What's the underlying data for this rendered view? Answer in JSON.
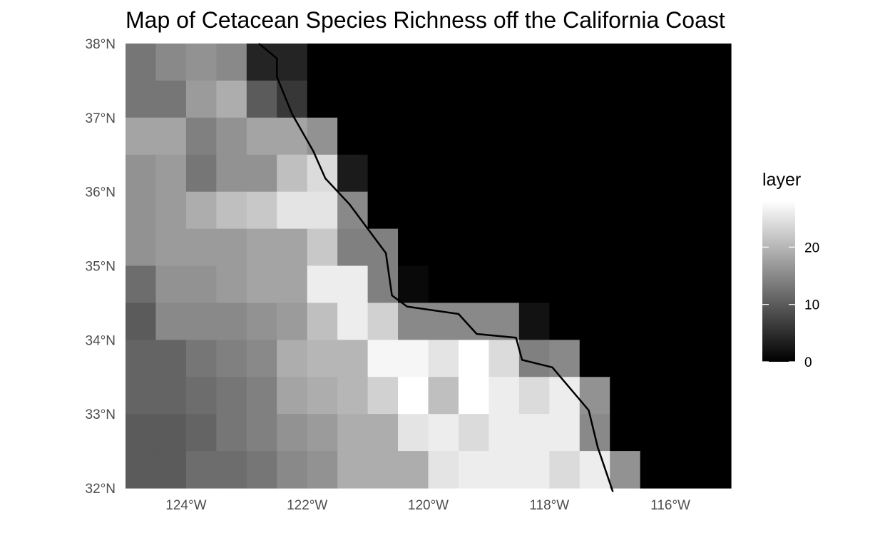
{
  "chart_data": {
    "type": "heatmap",
    "title": "Map of Cetacean Species Richness off the California Coast",
    "xlabel": "",
    "ylabel": "",
    "x_ticks": [
      {
        "value": -124,
        "label": "124°W"
      },
      {
        "value": -122,
        "label": "122°W"
      },
      {
        "value": -120,
        "label": "120°W"
      },
      {
        "value": -118,
        "label": "118°W"
      },
      {
        "value": -116,
        "label": "116°W"
      }
    ],
    "y_ticks": [
      {
        "value": 32,
        "label": "32°N"
      },
      {
        "value": 33,
        "label": "33°N"
      },
      {
        "value": 34,
        "label": "34°N"
      },
      {
        "value": 35,
        "label": "35°N"
      },
      {
        "value": 36,
        "label": "36°N"
      },
      {
        "value": 37,
        "label": "37°N"
      },
      {
        "value": 38,
        "label": "38°N"
      }
    ],
    "xlim": [
      -125,
      -115
    ],
    "ylim": [
      32,
      38
    ],
    "grid": false,
    "cell_size_deg": 0.5,
    "color_scale": {
      "min": 0,
      "max": 28,
      "low": "#000000",
      "high": "#ffffff"
    },
    "legend": {
      "title": "layer",
      "position": "right",
      "ticks": [
        {
          "value": 0,
          "label": "0"
        },
        {
          "value": 10,
          "label": "10"
        },
        {
          "value": 20,
          "label": "20"
        }
      ]
    },
    "rows_north_to_south": [
      [
        13,
        15,
        16,
        15,
        4,
        4,
        0,
        0,
        0,
        0,
        0,
        0,
        0,
        0,
        0,
        0,
        0,
        0,
        0,
        0
      ],
      [
        13,
        13,
        17,
        19,
        10,
        6,
        0,
        0,
        0,
        0,
        0,
        0,
        0,
        0,
        0,
        0,
        0,
        0,
        0,
        0
      ],
      [
        18,
        18,
        14,
        16,
        18,
        18,
        16,
        0,
        0,
        0,
        0,
        0,
        0,
        0,
        0,
        0,
        0,
        0,
        0,
        0
      ],
      [
        16,
        17,
        13,
        16,
        16,
        21,
        24,
        3,
        0,
        0,
        0,
        0,
        0,
        0,
        0,
        0,
        0,
        0,
        0,
        0
      ],
      [
        16,
        17,
        19,
        21,
        22,
        25,
        25,
        15,
        0,
        0,
        0,
        0,
        0,
        0,
        0,
        0,
        0,
        0,
        0,
        0
      ],
      [
        16,
        17,
        17,
        17,
        18,
        18,
        22,
        14,
        14,
        0,
        0,
        0,
        0,
        0,
        0,
        0,
        0,
        0,
        0,
        0
      ],
      [
        12,
        16,
        16,
        17,
        18,
        18,
        26,
        26,
        14,
        1,
        0,
        0,
        0,
        0,
        0,
        0,
        0,
        0,
        0,
        0
      ],
      [
        10,
        15,
        15,
        15,
        16,
        17,
        21,
        26,
        23,
        15,
        15,
        15,
        15,
        2,
        0,
        0,
        0,
        0,
        0,
        0
      ],
      [
        11,
        11,
        13,
        14,
        15,
        19,
        20,
        20,
        27,
        27,
        25,
        28,
        24,
        14,
        15,
        0,
        0,
        0,
        0,
        0
      ],
      [
        11,
        11,
        12,
        13,
        14,
        18,
        19,
        20,
        23,
        28,
        21,
        28,
        26,
        24,
        26,
        16,
        0,
        0,
        0,
        0
      ],
      [
        10,
        10,
        11,
        13,
        14,
        16,
        17,
        19,
        19,
        25,
        26,
        24,
        26,
        26,
        26,
        15,
        0,
        0,
        0,
        0
      ],
      [
        10,
        10,
        12,
        12,
        13,
        15,
        16,
        19,
        19,
        19,
        25,
        26,
        26,
        26,
        24,
        26,
        16,
        0,
        0,
        0
      ]
    ],
    "coastline": [
      [
        -122.8,
        38.0
      ],
      [
        -122.5,
        37.8
      ],
      [
        -122.5,
        37.55
      ],
      [
        -122.25,
        37.05
      ],
      [
        -121.9,
        36.55
      ],
      [
        -121.7,
        36.18
      ],
      [
        -121.3,
        35.83
      ],
      [
        -120.7,
        35.17
      ],
      [
        -120.6,
        34.6
      ],
      [
        -120.35,
        34.45
      ],
      [
        -119.5,
        34.35
      ],
      [
        -119.2,
        34.08
      ],
      [
        -118.55,
        34.03
      ],
      [
        -118.45,
        33.73
      ],
      [
        -117.95,
        33.63
      ],
      [
        -117.35,
        33.05
      ],
      [
        -117.2,
        32.55
      ],
      [
        -116.95,
        31.95
      ]
    ],
    "coastline_color": "#000000"
  }
}
